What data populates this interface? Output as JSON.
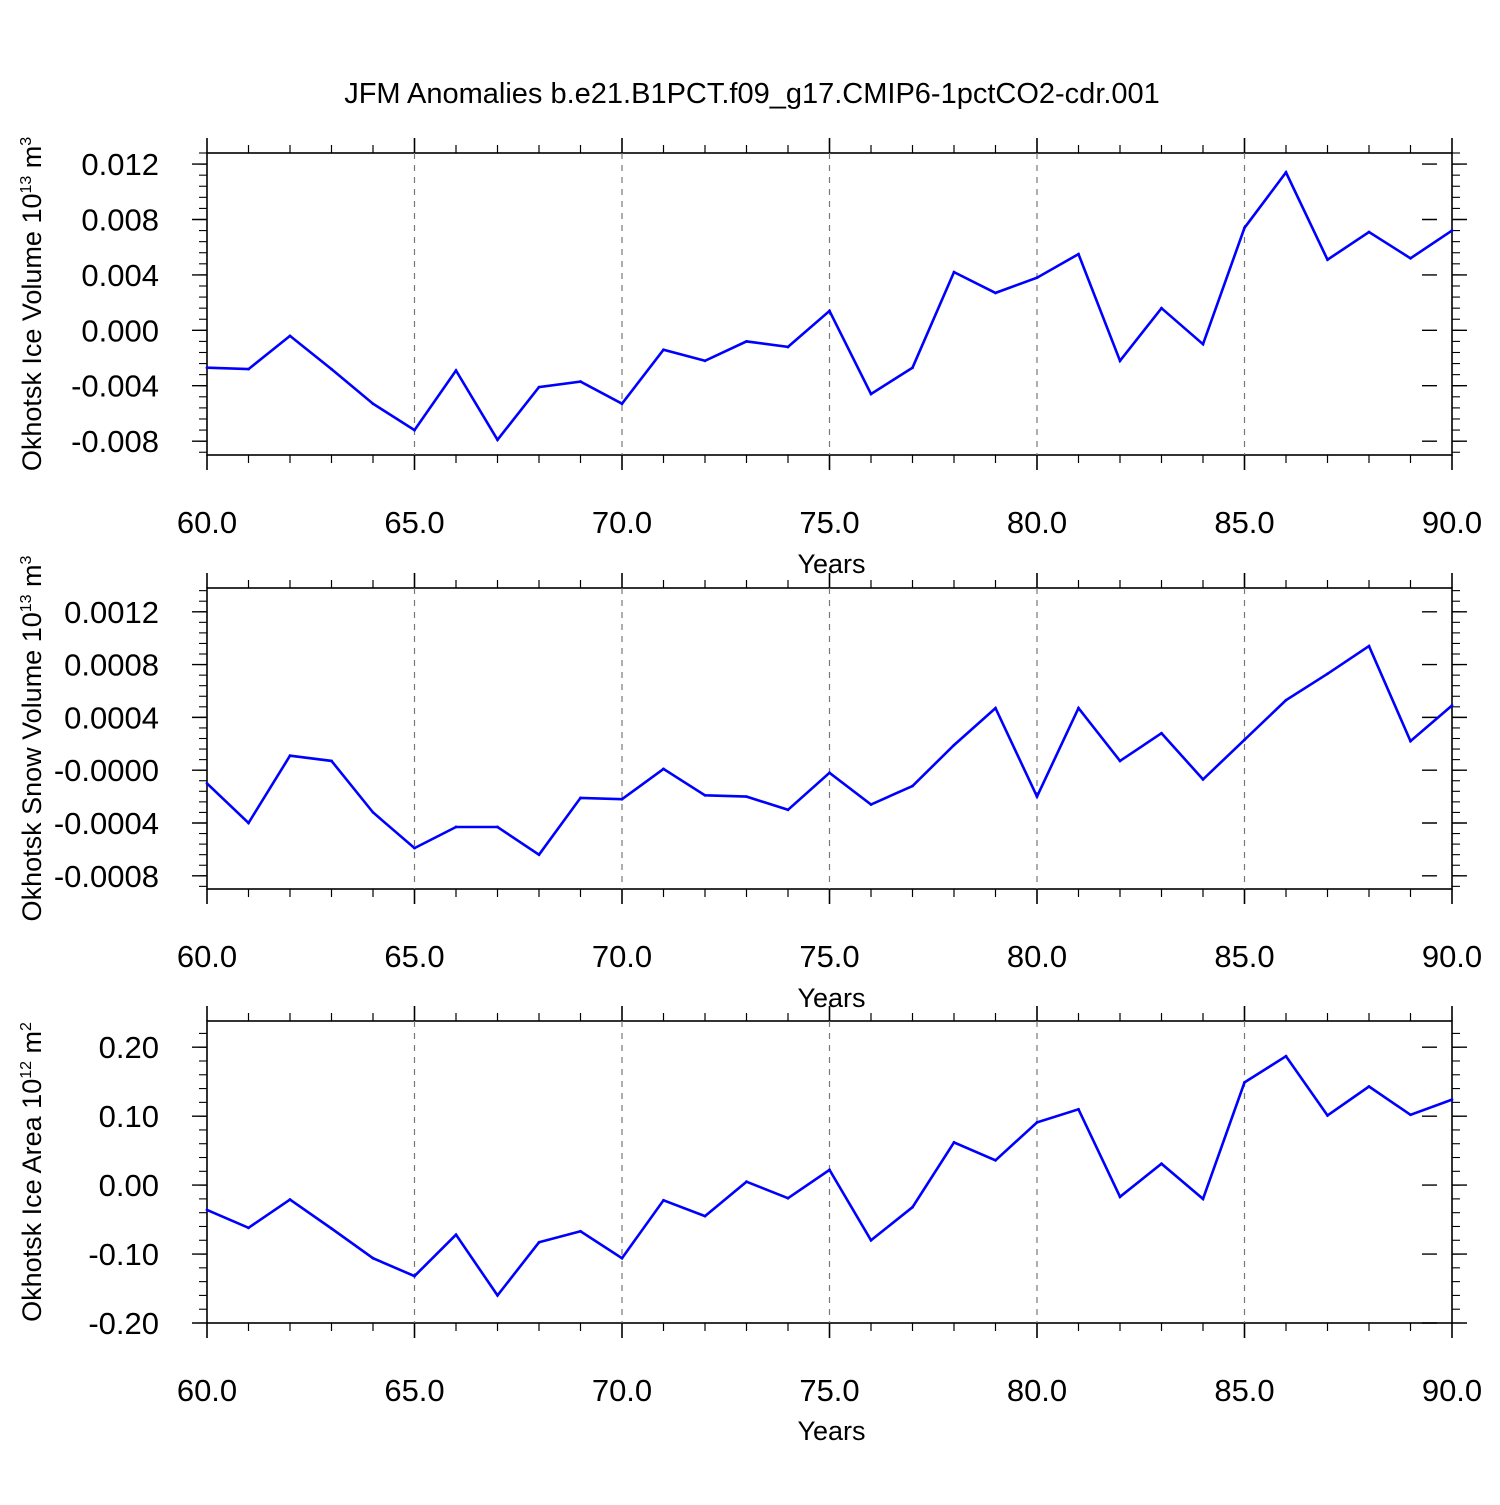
{
  "title": "JFM Anomalies b.e21.B1PCT.f09_g17.CMIP6-1pctCO2-cdr.001",
  "chart_data": [
    {
      "type": "line",
      "xlabel": "Years",
      "ylabel": {
        "main": "Okhotsk Ice Volume 10",
        "exponent": "13",
        "unit": " m",
        "unit_exponent": "3"
      },
      "xlim": [
        60,
        90
      ],
      "ylim": [
        -0.009,
        0.0128
      ],
      "xticks": [
        "60.0",
        "65.0",
        "70.0",
        "75.0",
        "80.0",
        "85.0",
        "90.0"
      ],
      "yticks": [
        {
          "value": 0.012,
          "label": "0.012"
        },
        {
          "value": 0.008,
          "label": "0.008"
        },
        {
          "value": 0.004,
          "label": "0.004"
        },
        {
          "value": 0.0,
          "label": "0.000"
        },
        {
          "value": -0.004,
          "label": "-0.004"
        },
        {
          "value": -0.008,
          "label": "-0.008"
        }
      ],
      "grid": "vertical dashed",
      "color": "#0000ff",
      "x": [
        60,
        61,
        62,
        63,
        64,
        65,
        66,
        67,
        68,
        69,
        70,
        71,
        72,
        73,
        74,
        75,
        76,
        77,
        78,
        79,
        80,
        81,
        82,
        83,
        84,
        85,
        86,
        87,
        88,
        89,
        90
      ],
      "y": [
        -0.0027,
        -0.0028,
        -0.0004,
        -0.0028,
        -0.0053,
        -0.0072,
        -0.0029,
        -0.0079,
        -0.0041,
        -0.0037,
        -0.0053,
        -0.0014,
        -0.0022,
        -0.0008,
        -0.0012,
        0.0014,
        -0.0046,
        -0.0027,
        0.0042,
        0.0027,
        0.0038,
        0.0055,
        -0.0022,
        0.0016,
        -0.001,
        0.0074,
        0.0114,
        0.0051,
        0.0071,
        0.0052,
        0.0072
      ]
    },
    {
      "type": "line",
      "xlabel": "Years",
      "ylabel": {
        "main": "Okhotsk Snow Volume 10",
        "exponent": "13",
        "unit": " m",
        "unit_exponent": "3"
      },
      "xlim": [
        60,
        90
      ],
      "ylim": [
        -0.0009,
        0.00138
      ],
      "xticks": [
        "60.0",
        "65.0",
        "70.0",
        "75.0",
        "80.0",
        "85.0",
        "90.0"
      ],
      "yticks": [
        {
          "value": 0.0012,
          "label": "0.0012"
        },
        {
          "value": 0.0008,
          "label": "0.0008"
        },
        {
          "value": 0.0004,
          "label": "0.0004"
        },
        {
          "value": 0.0,
          "label": "-0.0000"
        },
        {
          "value": -0.0004,
          "label": "-0.0004"
        },
        {
          "value": -0.0008,
          "label": "-0.0008"
        }
      ],
      "grid": "vertical dashed",
      "color": "#0000ff",
      "x": [
        60,
        61,
        62,
        63,
        64,
        65,
        66,
        67,
        68,
        69,
        70,
        71,
        72,
        73,
        74,
        75,
        76,
        77,
        78,
        79,
        80,
        81,
        82,
        83,
        84,
        85,
        86,
        87,
        88,
        89,
        90
      ],
      "y": [
        -0.0001,
        -0.0004,
        0.00011,
        7e-05,
        -0.00032,
        -0.00059,
        -0.00043,
        -0.00043,
        -0.00064,
        -0.00021,
        -0.00022,
        1e-05,
        -0.00019,
        -0.0002,
        -0.0003,
        -2e-05,
        -0.00026,
        -0.00012,
        0.00019,
        0.00047,
        -0.0002,
        0.00047,
        7e-05,
        0.00028,
        -7e-05,
        0.00023,
        0.00053,
        0.00073,
        0.00094,
        0.00022,
        0.00049
      ]
    },
    {
      "type": "line",
      "xlabel": "Years",
      "ylabel": {
        "main": "Okhotsk Ice Area 10",
        "exponent": "12",
        "unit": " m",
        "unit_exponent": "2"
      },
      "xlim": [
        60,
        90
      ],
      "ylim": [
        -0.2,
        0.238
      ],
      "xticks": [
        "60.0",
        "65.0",
        "70.0",
        "75.0",
        "80.0",
        "85.0",
        "90.0"
      ],
      "yticks": [
        {
          "value": 0.2,
          "label": "0.20"
        },
        {
          "value": 0.1,
          "label": "0.10"
        },
        {
          "value": 0.0,
          "label": "0.00"
        },
        {
          "value": -0.1,
          "label": "-0.10"
        },
        {
          "value": -0.2,
          "label": "-0.20"
        }
      ],
      "grid": "vertical dashed",
      "color": "#0000ff",
      "x": [
        60,
        61,
        62,
        63,
        64,
        65,
        66,
        67,
        68,
        69,
        70,
        71,
        72,
        73,
        74,
        75,
        76,
        77,
        78,
        79,
        80,
        81,
        82,
        83,
        84,
        85,
        86,
        87,
        88,
        89,
        90
      ],
      "y": [
        -0.036,
        -0.062,
        -0.021,
        -0.063,
        -0.106,
        -0.132,
        -0.072,
        -0.16,
        -0.083,
        -0.067,
        -0.106,
        -0.022,
        -0.045,
        0.005,
        -0.019,
        0.022,
        -0.08,
        -0.032,
        0.062,
        0.036,
        0.091,
        0.11,
        -0.017,
        0.031,
        -0.02,
        0.149,
        0.187,
        0.101,
        0.143,
        0.102,
        0.124
      ]
    }
  ]
}
